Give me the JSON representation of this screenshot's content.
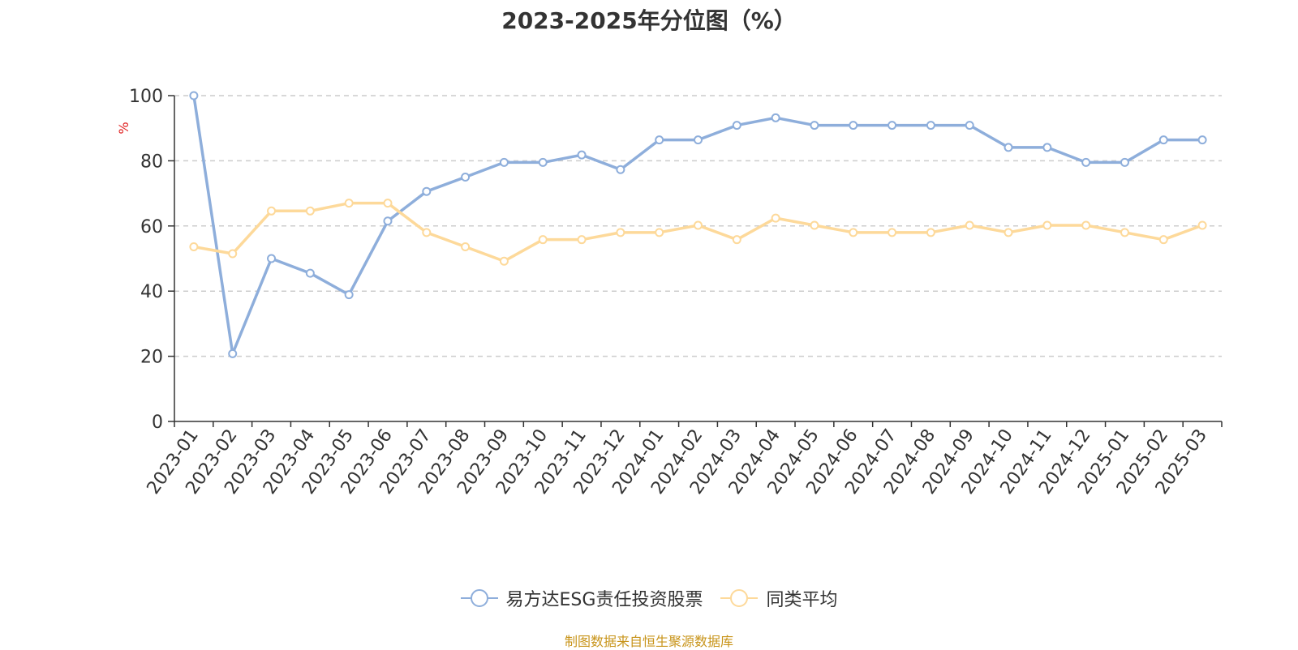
{
  "chart_data": {
    "type": "line",
    "title": "2023-2025年分位图（%）",
    "ylabel": "%",
    "ylim": [
      0,
      100
    ],
    "yticks": [
      0,
      20,
      40,
      60,
      80,
      100
    ],
    "grid": true,
    "legend_position": "bottom-center",
    "categories": [
      "2023-01",
      "2023-02",
      "2023-03",
      "2023-04",
      "2023-05",
      "2023-06",
      "2023-07",
      "2023-08",
      "2023-09",
      "2023-10",
      "2023-11",
      "2023-12",
      "2024-01",
      "2024-02",
      "2024-03",
      "2024-04",
      "2024-05",
      "2024-06",
      "2024-07",
      "2024-08",
      "2024-09",
      "2024-10",
      "2024-11",
      "2024-12",
      "2025-01",
      "2025-02",
      "2025-03"
    ],
    "series": [
      {
        "name": "易方达ESG责任投资股票",
        "color": "#8eaedb",
        "values": [
          100,
          20.8,
          50,
          45.5,
          38.9,
          61.5,
          70.6,
          75,
          79.5,
          79.5,
          81.8,
          77.3,
          86.4,
          86.4,
          90.9,
          93.2,
          90.9,
          90.9,
          90.9,
          90.9,
          90.9,
          84.1,
          84.1,
          79.5,
          79.5,
          86.4,
          86.4
        ]
      },
      {
        "name": "同类平均",
        "color": "#fdd99a",
        "values": [
          53.6,
          51.5,
          64.6,
          64.6,
          67,
          67,
          58,
          53.6,
          49.2,
          55.8,
          55.8,
          58,
          58,
          60.2,
          55.8,
          62.4,
          60.2,
          58,
          58,
          58,
          60.2,
          58,
          60.2,
          60.2,
          58,
          55.8,
          60.2
        ]
      }
    ]
  },
  "source_text": "制图数据来自恒生聚源数据库"
}
